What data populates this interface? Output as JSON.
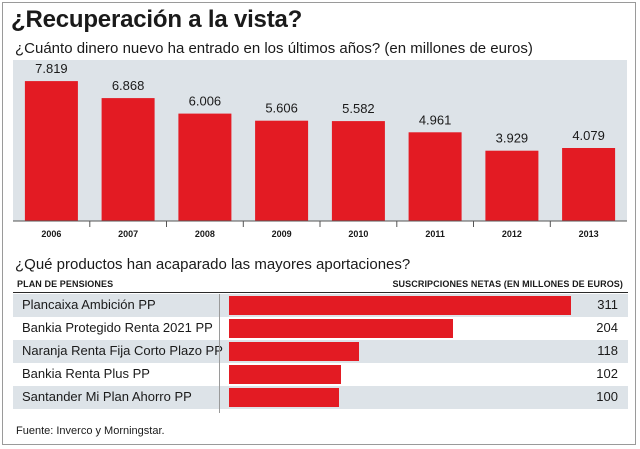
{
  "title": "¿Recuperación a la vista?",
  "chart_data": [
    {
      "type": "bar",
      "title": "¿Cuánto dinero nuevo ha entrado en los últimos años? (en millones de euros)",
      "categories": [
        "2006",
        "2007",
        "2008",
        "2009",
        "2010",
        "2011",
        "2012",
        "2013"
      ],
      "values": [
        7819,
        6868,
        6006,
        5606,
        5582,
        4961,
        3929,
        4079
      ],
      "value_labels": [
        "7.819",
        "6.868",
        "6.006",
        "5.606",
        "5.582",
        "4.961",
        "3.929",
        "4.079"
      ],
      "ylim": [
        0,
        9000
      ],
      "grid": false,
      "bar_color": "#e31b23",
      "background": "#dde3e8"
    },
    {
      "type": "bar",
      "orientation": "horizontal",
      "title": "¿Qué productos han acaparado las mayores aportaciones?",
      "column_headers": [
        "PLAN DE PENSIONES",
        "SUSCRIPCIONES NETAS (EN MILLONES DE EUROS)"
      ],
      "categories": [
        "Plancaixa Ambición PP",
        "Bankia Protegido Renta 2021 PP",
        "Naranja Renta Fija Corto Plazo PP",
        "Bankia Renta Plus PP",
        "Santander Mi Plan Ahorro PP"
      ],
      "values": [
        311,
        204,
        118,
        102,
        100
      ],
      "xlim": [
        0,
        340
      ],
      "bar_color": "#e31b23",
      "row_alt_color": "#dde3e8"
    }
  ],
  "source": "Fuente: Inverco y Morningstar."
}
